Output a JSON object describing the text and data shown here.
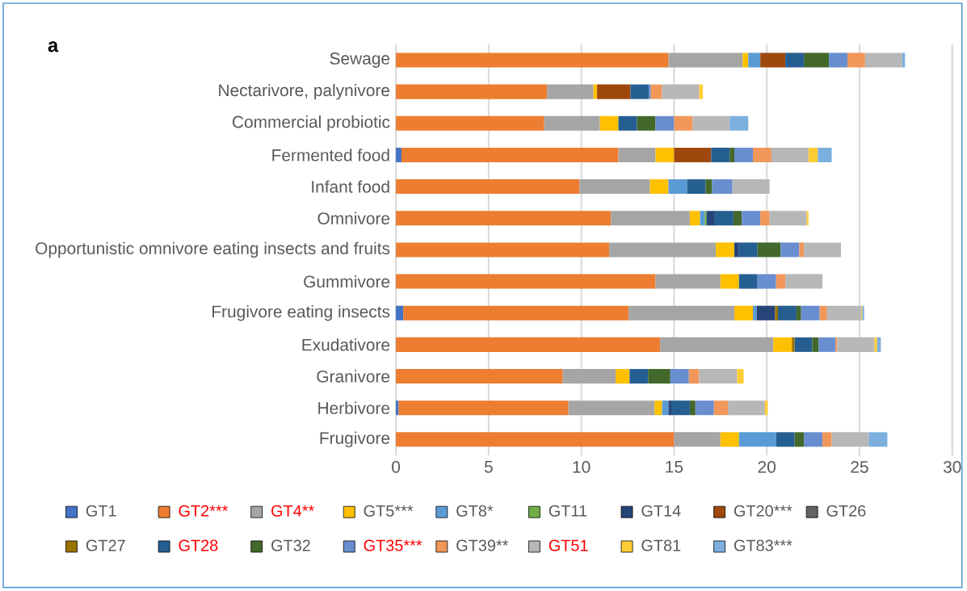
{
  "chart_data": {
    "type": "bar",
    "orientation": "horizontal",
    "stacked": true,
    "title": "a",
    "categories": [
      "Sewage",
      "Nectarivore, palynivore",
      "Commercial probiotic",
      "Fermented food",
      "Infant food",
      "Omnivore",
      "Opportunistic omnivore eating insects and fruits",
      "Gummivore",
      "Frugivore eating insects",
      "Exudativore",
      "Granivore",
      "Herbivore",
      "Frugivore"
    ],
    "series": [
      {
        "name": "GT1",
        "color": "#4472c4",
        "values": [
          null,
          null,
          null,
          0.3,
          null,
          null,
          null,
          null,
          0.4,
          null,
          null,
          0.15,
          null
        ]
      },
      {
        "name": "GT2***",
        "color": "#ed7d31",
        "values": [
          14.7,
          8.15,
          8.0,
          11.7,
          9.9,
          11.6,
          11.5,
          14.0,
          12.15,
          14.25,
          9.0,
          9.15,
          15.0
        ]
      },
      {
        "name": "GT4**",
        "color": "#a5a5a5",
        "values": [
          4.0,
          2.5,
          3.0,
          2.0,
          3.8,
          4.25,
          5.75,
          3.5,
          5.7,
          6.1,
          2.85,
          4.65,
          2.5
        ]
      },
      {
        "name": "GT5***",
        "color": "#ffc000",
        "values": [
          0.3,
          0.2,
          1.0,
          1.0,
          1.0,
          0.55,
          1.0,
          1.0,
          1.0,
          1.0,
          0.75,
          0.4,
          1.0
        ]
      },
      {
        "name": "GT8*",
        "color": "#5b9bd5",
        "values": [
          0.65,
          null,
          null,
          null,
          1.0,
          0.25,
          null,
          null,
          0.2,
          null,
          null,
          0.35,
          2.0
        ]
      },
      {
        "name": "GT11",
        "color": "#70ad47",
        "values": [
          null,
          null,
          null,
          null,
          null,
          0.1,
          null,
          null,
          null,
          null,
          null,
          null,
          null
        ]
      },
      {
        "name": "GT14",
        "color": "#264478",
        "values": [
          null,
          null,
          null,
          null,
          null,
          0.45,
          0.25,
          null,
          1.0,
          null,
          null,
          0.15,
          null
        ]
      },
      {
        "name": "GT20***",
        "color": "#9e480e",
        "values": [
          1.35,
          1.8,
          null,
          2.0,
          null,
          null,
          null,
          null,
          null,
          null,
          null,
          null,
          null
        ]
      },
      {
        "name": "GT26",
        "color": "#636363",
        "values": [
          null,
          null,
          null,
          null,
          null,
          null,
          null,
          null,
          null,
          null,
          null,
          null,
          null
        ]
      },
      {
        "name": "GT27",
        "color": "#997300",
        "values": [
          null,
          null,
          null,
          null,
          null,
          null,
          null,
          null,
          0.15,
          0.15,
          null,
          null,
          null
        ]
      },
      {
        "name": "GT28",
        "color": "#255e91",
        "values": [
          1.0,
          1.0,
          1.0,
          1.0,
          1.0,
          1.0,
          1.0,
          1.0,
          1.0,
          0.95,
          1.0,
          1.0,
          1.0
        ]
      },
      {
        "name": "GT32",
        "color": "#43682b",
        "values": [
          1.35,
          null,
          1.0,
          0.25,
          0.35,
          0.45,
          1.25,
          null,
          0.25,
          0.35,
          1.2,
          0.3,
          0.5
        ]
      },
      {
        "name": "GT35***",
        "color": "#698ed0",
        "values": [
          1.0,
          0.1,
          1.0,
          1.0,
          1.1,
          1.0,
          1.0,
          1.0,
          1.0,
          0.9,
          1.0,
          1.0,
          1.0
        ]
      },
      {
        "name": "GT39**",
        "color": "#f1975a",
        "values": [
          0.95,
          0.6,
          1.0,
          1.0,
          null,
          0.5,
          0.25,
          0.5,
          0.4,
          0.1,
          0.55,
          0.75,
          0.5
        ]
      },
      {
        "name": "GT51",
        "color": "#b7b7b7",
        "values": [
          2.0,
          2.0,
          2.0,
          2.0,
          2.0,
          2.0,
          2.0,
          2.0,
          1.85,
          2.0,
          2.05,
          2.0,
          2.0
        ]
      },
      {
        "name": "GT81",
        "color": "#ffcd33",
        "values": [
          null,
          0.2,
          null,
          0.5,
          null,
          0.1,
          null,
          null,
          0.05,
          0.15,
          0.35,
          0.15,
          null
        ]
      },
      {
        "name": "GT83***",
        "color": "#7cafdd",
        "values": [
          0.15,
          null,
          1.0,
          0.75,
          null,
          null,
          null,
          null,
          0.1,
          0.2,
          null,
          null,
          1.0
        ]
      }
    ],
    "xlim": [
      0,
      30
    ],
    "xticks": [
      0,
      5,
      10,
      15,
      20,
      25,
      30
    ],
    "grid": "x",
    "legend": "bottom"
  }
}
